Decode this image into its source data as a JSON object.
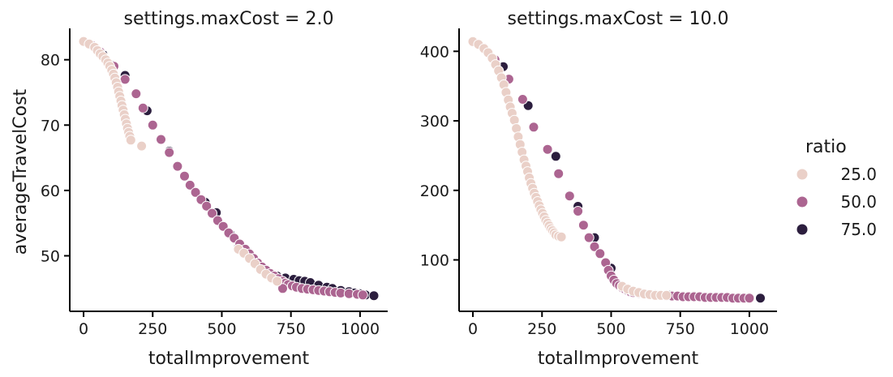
{
  "chart_data": {
    "type": "scatter",
    "hue_label": "ratio",
    "hue_levels": [
      {
        "name": "25.0",
        "color": "#ead0c8"
      },
      {
        "name": "50.0",
        "color": "#ac6591"
      },
      {
        "name": "75.0",
        "color": "#2c1e3e"
      }
    ],
    "legend_position": "right",
    "grid": false,
    "panels": [
      {
        "title": "settings.maxCost = 2.0",
        "xlabel": "totalImprovement",
        "ylabel": "averageTravelCost",
        "xlim": [
          -50,
          1100
        ],
        "ylim": [
          41.5,
          84.8
        ],
        "xticks": [
          0,
          250,
          500,
          750,
          1000
        ],
        "yticks": [
          50,
          60,
          70,
          80
        ],
        "series": [
          {
            "name": "75.0",
            "points": [
              [
                0,
                82.8
              ],
              [
                70,
                80.8
              ],
              [
                100,
                79.2
              ],
              [
                150,
                77.6
              ],
              [
                230,
                72.2
              ],
              [
                310,
                66.0
              ],
              [
                440,
                58.2
              ],
              [
                480,
                56.6
              ],
              [
                530,
                53.4
              ],
              [
                560,
                51.3
              ],
              [
                590,
                50.8
              ],
              [
                630,
                48.7
              ],
              [
                660,
                47.9
              ],
              [
                700,
                46.9
              ],
              [
                730,
                46.6
              ],
              [
                760,
                46.4
              ],
              [
                780,
                46.2
              ],
              [
                800,
                46.1
              ],
              [
                820,
                45.9
              ],
              [
                850,
                45.5
              ],
              [
                880,
                45.2
              ],
              [
                900,
                45.0
              ],
              [
                930,
                44.7
              ],
              [
                960,
                44.5
              ],
              [
                980,
                44.3
              ],
              [
                1000,
                44.2
              ],
              [
                1020,
                44.0
              ],
              [
                1050,
                43.9
              ]
            ]
          },
          {
            "name": "50.0",
            "points": [
              [
                0,
                82.8
              ],
              [
                30,
                82.2
              ],
              [
                60,
                81.2
              ],
              [
                110,
                79.0
              ],
              [
                150,
                77.0
              ],
              [
                190,
                74.8
              ],
              [
                215,
                72.6
              ],
              [
                250,
                70.0
              ],
              [
                280,
                67.8
              ],
              [
                310,
                65.8
              ],
              [
                340,
                63.7
              ],
              [
                365,
                62.2
              ],
              [
                385,
                60.8
              ],
              [
                405,
                59.7
              ],
              [
                425,
                58.6
              ],
              [
                445,
                57.6
              ],
              [
                465,
                56.5
              ],
              [
                485,
                55.4
              ],
              [
                505,
                54.5
              ],
              [
                525,
                53.5
              ],
              [
                545,
                52.7
              ],
              [
                565,
                51.8
              ],
              [
                585,
                51.0
              ],
              [
                600,
                50.3
              ],
              [
                615,
                49.6
              ],
              [
                630,
                48.9
              ],
              [
                645,
                48.3
              ],
              [
                660,
                47.8
              ],
              [
                675,
                47.3
              ],
              [
                690,
                46.9
              ],
              [
                705,
                46.5
              ],
              [
                720,
                46.1
              ],
              [
                730,
                45.8
              ],
              [
                740,
                45.6
              ],
              [
                755,
                45.4
              ],
              [
                770,
                45.2
              ],
              [
                790,
                45.0
              ],
              [
                810,
                44.9
              ],
              [
                830,
                44.8
              ],
              [
                850,
                44.7
              ],
              [
                870,
                44.6
              ],
              [
                890,
                44.5
              ],
              [
                910,
                44.4
              ],
              [
                930,
                44.3
              ],
              [
                960,
                44.2
              ],
              [
                990,
                44.1
              ],
              [
                1010,
                44.0
              ],
              [
                720,
                45.0
              ]
            ]
          },
          {
            "name": "25.0",
            "points": [
              [
                0,
                82.8
              ],
              [
                20,
                82.4
              ],
              [
                40,
                81.9
              ],
              [
                50,
                81.4
              ],
              [
                60,
                80.9
              ],
              [
                70,
                80.5
              ],
              [
                80,
                80.0
              ],
              [
                88,
                79.5
              ],
              [
                95,
                79.0
              ],
              [
                102,
                78.4
              ],
              [
                108,
                77.8
              ],
              [
                113,
                77.2
              ],
              [
                118,
                76.5
              ],
              [
                123,
                75.8
              ],
              [
                127,
                75.1
              ],
              [
                131,
                74.4
              ],
              [
                135,
                73.7
              ],
              [
                139,
                73.0
              ],
              [
                143,
                72.3
              ],
              [
                147,
                71.6
              ],
              [
                151,
                70.9
              ],
              [
                155,
                70.2
              ],
              [
                159,
                69.5
              ],
              [
                163,
                68.9
              ],
              [
                167,
                68.3
              ],
              [
                171,
                67.7
              ],
              [
                210,
                66.8
              ],
              [
                560,
                51.0
              ],
              [
                580,
                50.4
              ],
              [
                600,
                49.6
              ],
              [
                620,
                48.8
              ],
              [
                640,
                47.9
              ],
              [
                660,
                47.2
              ],
              [
                680,
                46.6
              ],
              [
                700,
                46.1
              ]
            ]
          }
        ]
      },
      {
        "title": "settings.maxCost = 10.0",
        "xlabel": "totalImprovement",
        "ylabel": "",
        "xlim": [
          -50,
          1100
        ],
        "ylim": [
          26,
          433
        ],
        "xticks": [
          0,
          250,
          500,
          750,
          1000
        ],
        "yticks": [
          100,
          200,
          300,
          400
        ],
        "series": [
          {
            "name": "75.0",
            "points": [
              [
                0,
                414
              ],
              [
                110,
                378
              ],
              [
                200,
                322
              ],
              [
                300,
                249
              ],
              [
                380,
                177
              ],
              [
                440,
                132
              ],
              [
                500,
                88
              ],
              [
                560,
                58
              ],
              [
                610,
                52
              ],
              [
                660,
                50
              ],
              [
                710,
                49
              ],
              [
                760,
                48
              ],
              [
                800,
                48
              ],
              [
                840,
                47
              ],
              [
                880,
                47
              ],
              [
                920,
                46
              ],
              [
                960,
                46
              ],
              [
                1000,
                46
              ],
              [
                1040,
                45
              ]
            ]
          },
          {
            "name": "50.0",
            "points": [
              [
                0,
                414
              ],
              [
                40,
                405
              ],
              [
                80,
                388
              ],
              [
                130,
                360
              ],
              [
                180,
                331
              ],
              [
                220,
                291
              ],
              [
                270,
                259
              ],
              [
                310,
                224
              ],
              [
                350,
                192
              ],
              [
                380,
                170
              ],
              [
                400,
                150
              ],
              [
                420,
                132
              ],
              [
                440,
                119
              ],
              [
                460,
                109
              ],
              [
                480,
                96
              ],
              [
                490,
                85
              ],
              [
                500,
                77
              ],
              [
                510,
                71
              ],
              [
                520,
                66
              ],
              [
                530,
                63
              ],
              [
                540,
                60
              ],
              [
                550,
                58
              ],
              [
                560,
                56
              ],
              [
                570,
                54
              ],
              [
                580,
                53
              ],
              [
                600,
                52
              ],
              [
                620,
                51
              ],
              [
                640,
                50
              ],
              [
                660,
                49
              ],
              [
                680,
                49
              ],
              [
                700,
                48
              ],
              [
                720,
                48
              ],
              [
                740,
                48
              ],
              [
                760,
                47
              ],
              [
                780,
                47
              ],
              [
                800,
                47
              ],
              [
                820,
                47
              ],
              [
                840,
                46
              ],
              [
                860,
                46
              ],
              [
                880,
                46
              ],
              [
                900,
                46
              ],
              [
                920,
                46
              ],
              [
                940,
                45
              ],
              [
                960,
                45
              ],
              [
                980,
                45
              ],
              [
                1000,
                45
              ]
            ]
          },
          {
            "name": "25.0",
            "points": [
              [
                0,
                414
              ],
              [
                20,
                410
              ],
              [
                40,
                404
              ],
              [
                55,
                398
              ],
              [
                70,
                390
              ],
              [
                82,
                381
              ],
              [
                93,
                372
              ],
              [
                103,
                362
              ],
              [
                112,
                352
              ],
              [
                120,
                341
              ],
              [
                128,
                330
              ],
              [
                135,
                320
              ],
              [
                142,
                311
              ],
              [
                150,
                301
              ],
              [
                157,
                289
              ],
              [
                164,
                277
              ],
              [
                171,
                266
              ],
              [
                178,
                255
              ],
              [
                185,
                244
              ],
              [
                192,
                235
              ],
              [
                198,
                227
              ],
              [
                204,
                218
              ],
              [
                210,
                210
              ],
              [
                216,
                203
              ],
              [
                222,
                196
              ],
              [
                228,
                190
              ],
              [
                234,
                184
              ],
              [
                240,
                178
              ],
              [
                246,
                172
              ],
              [
                252,
                167
              ],
              [
                258,
                162
              ],
              [
                264,
                157
              ],
              [
                270,
                153
              ],
              [
                276,
                149
              ],
              [
                282,
                145
              ],
              [
                288,
                142
              ],
              [
                294,
                139
              ],
              [
                300,
                136
              ],
              [
                310,
                134
              ],
              [
                320,
                133
              ],
              [
                540,
                62
              ],
              [
                560,
                58
              ],
              [
                580,
                55
              ],
              [
                600,
                53
              ],
              [
                620,
                51
              ],
              [
                640,
                50
              ],
              [
                660,
                49
              ],
              [
                680,
                49
              ],
              [
                700,
                49
              ]
            ]
          }
        ]
      }
    ]
  }
}
